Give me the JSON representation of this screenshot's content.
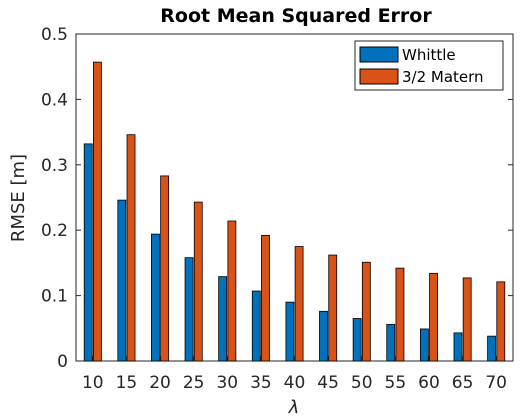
{
  "chart_data": {
    "type": "bar",
    "title": "Root Mean Squared Error",
    "xlabel": "λ",
    "ylabel": "RMSE [m]",
    "ylim": [
      0,
      0.5
    ],
    "yticks": [
      "0",
      "0.1",
      "0.2",
      "0.3",
      "0.4",
      "0.5"
    ],
    "categories": [
      "10",
      "15",
      "20",
      "25",
      "30",
      "35",
      "40",
      "45",
      "50",
      "55",
      "60",
      "65",
      "70"
    ],
    "series": [
      {
        "name": "Whittle",
        "color": "#0072BD",
        "values": [
          0.332,
          0.246,
          0.194,
          0.158,
          0.129,
          0.107,
          0.09,
          0.076,
          0.065,
          0.056,
          0.049,
          0.043,
          0.038
        ]
      },
      {
        "name": "3/2 Matern",
        "color": "#D95319",
        "values": [
          0.457,
          0.346,
          0.283,
          0.243,
          0.214,
          0.192,
          0.175,
          0.162,
          0.151,
          0.142,
          0.134,
          0.127,
          0.121
        ]
      }
    ],
    "legend_position": "top-right",
    "grid": false
  }
}
